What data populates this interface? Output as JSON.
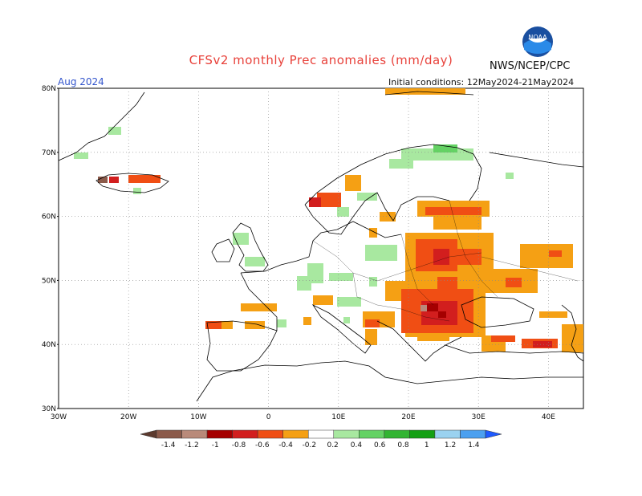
{
  "header": {
    "title": "CFSv2 monthly Prec anomalies (mm/day)",
    "agency": "NWS/NCEP/CPC",
    "month": "Aug 2024",
    "initial_conditions": "Initial conditions: 12May2024-21May2024"
  },
  "logo": {
    "text": "NOAA",
    "icon": "noaa-logo"
  },
  "axes": {
    "lat_labels": [
      "80N",
      "70N",
      "60N",
      "50N",
      "40N",
      "30N"
    ],
    "lon_labels": [
      "30W",
      "20W",
      "10W",
      "0",
      "10E",
      "20E",
      "30E",
      "40E"
    ],
    "lon_range": [
      -30,
      45
    ],
    "lat_range": [
      30,
      80
    ],
    "grid": "dotted"
  },
  "colorbar": {
    "labels": [
      "-1.4",
      "-1.2",
      "-1",
      "-0.8",
      "-0.6",
      "-0.4",
      "-0.2",
      "0.2",
      "0.4",
      "0.6",
      "0.8",
      "1",
      "1.2",
      "1.4"
    ],
    "colors": [
      "#5c3a2e",
      "#8b5a4a",
      "#b98a7a",
      "#a50000",
      "#d21e1e",
      "#f04e14",
      "#f5a014",
      "#ffffff",
      "#a8e8a0",
      "#64d264",
      "#32b432",
      "#14a014",
      "#9ad2f0",
      "#4ba0f0",
      "#1e5aff"
    ]
  },
  "legend_placement": "bottom"
}
